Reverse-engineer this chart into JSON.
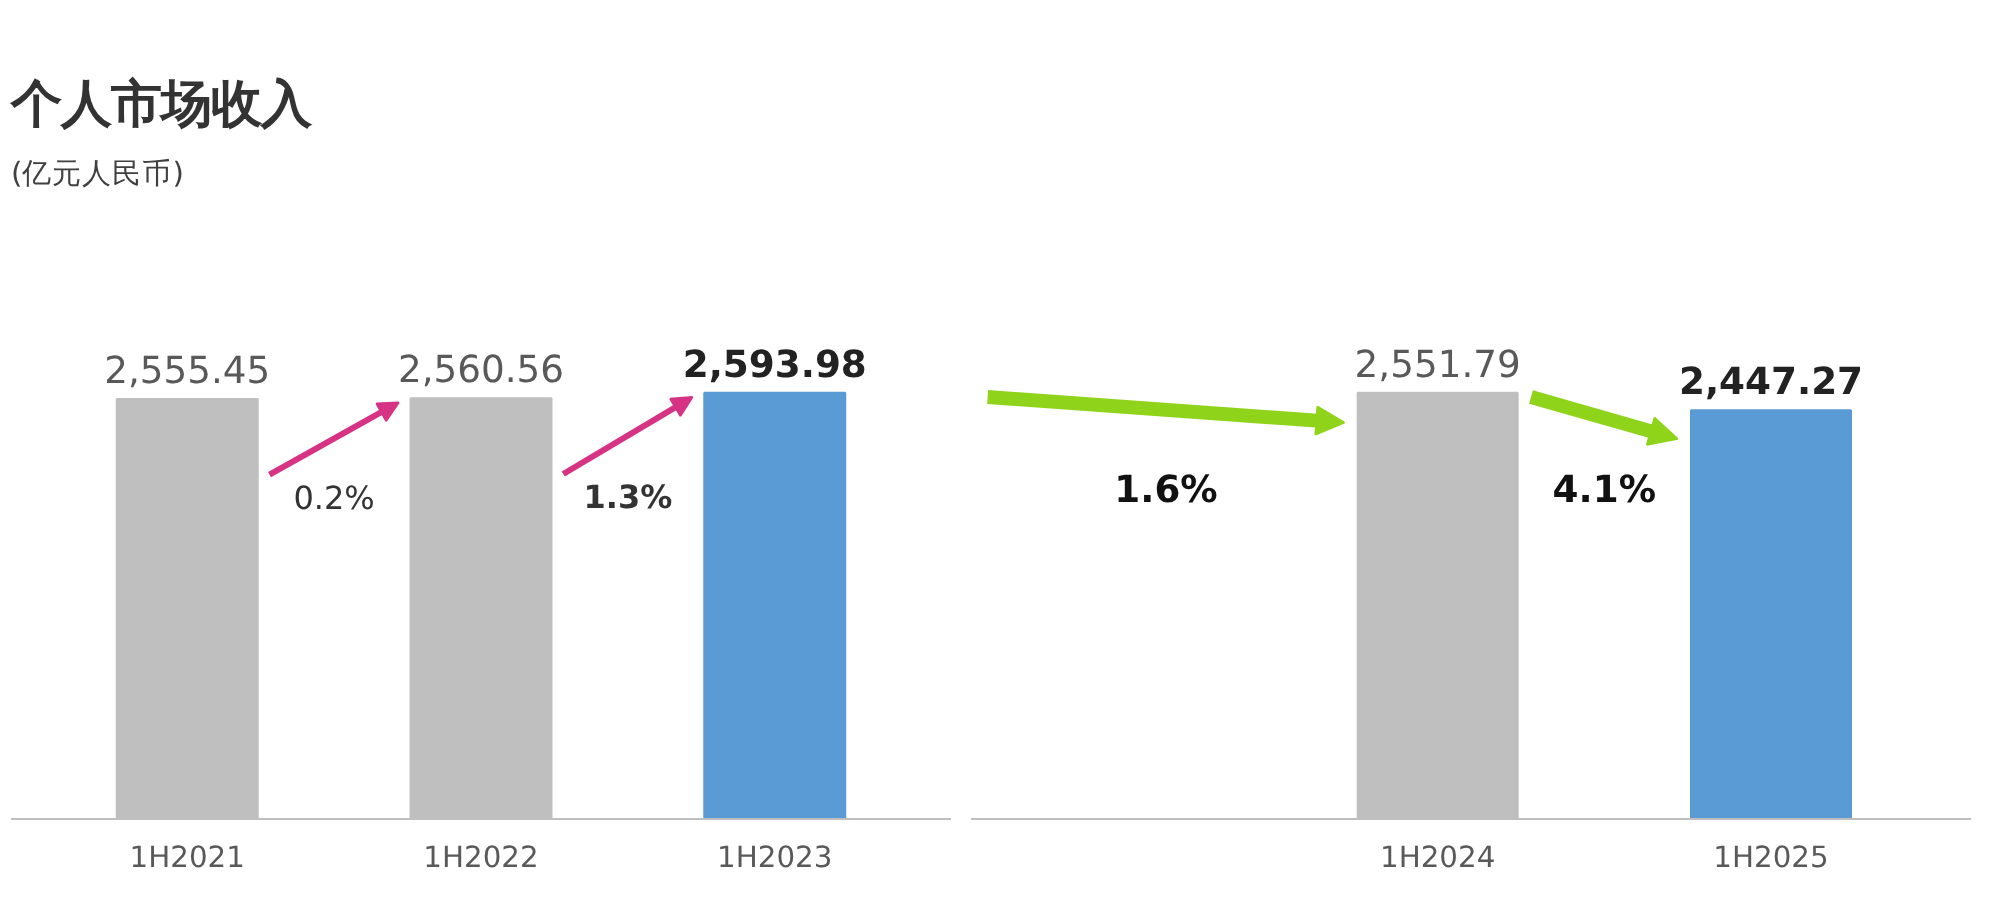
{
  "chart_data": [
    {
      "type": "bar",
      "title": "个人市场收入",
      "subtitle": "(亿元人民币)",
      "categories": [
        "1H2021",
        "1H2022",
        "1H2023"
      ],
      "values": [
        2555.45,
        2560.56,
        2593.98
      ],
      "colors": [
        "#bfbfbf",
        "#bfbfbf",
        "#5b9bd5"
      ],
      "data_labels": true,
      "value_labels": [
        "2,555.45",
        "2,560.56",
        "2,593.98"
      ],
      "annotations": [
        "0.2%",
        "1.3%"
      ]
    },
    {
      "type": "bar",
      "categories": [
        "1H2024",
        "1H2025"
      ],
      "values": [
        2551.79,
        2447.27
      ],
      "colors": [
        "#bfbfbf",
        "#5b9bd5"
      ],
      "data_labels": true,
      "value_labels": [
        "2,551.79",
        "2,447.27"
      ],
      "annotations": [
        "1.6%",
        "4.1%"
      ]
    }
  ]
}
